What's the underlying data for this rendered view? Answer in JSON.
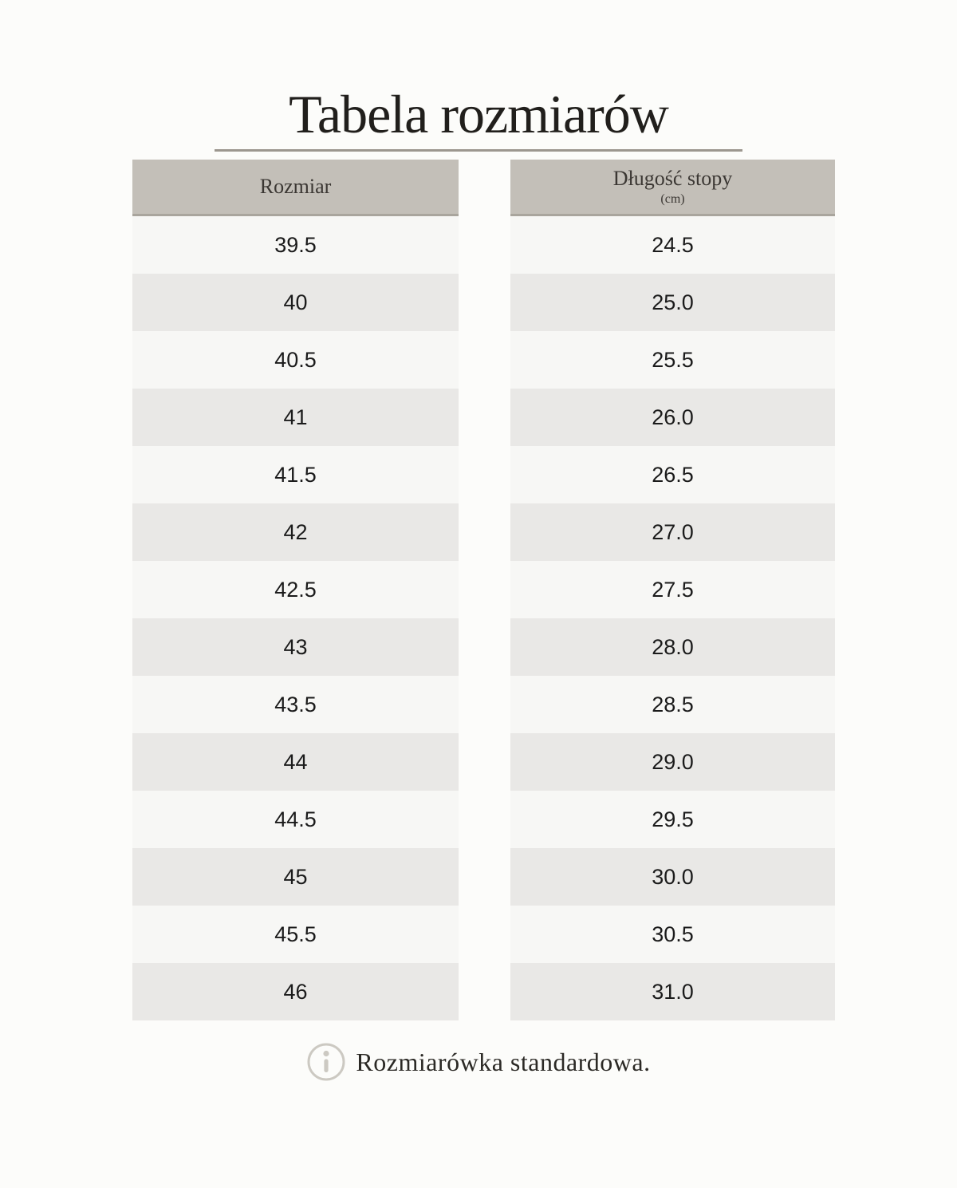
{
  "page": {
    "title": "Tabela rozmiarów",
    "background": "#FCFCFA"
  },
  "table": {
    "headers": {
      "size": "Rozmiar",
      "foot_length": "Długość stopy",
      "foot_length_unit": "(cm)"
    },
    "rows": [
      {
        "size": "39.5",
        "foot_length_cm": "24.5"
      },
      {
        "size": "40",
        "foot_length_cm": "25.0"
      },
      {
        "size": "40.5",
        "foot_length_cm": "25.5"
      },
      {
        "size": "41",
        "foot_length_cm": "26.0"
      },
      {
        "size": "41.5",
        "foot_length_cm": "26.5"
      },
      {
        "size": "42",
        "foot_length_cm": "27.0"
      },
      {
        "size": "42.5",
        "foot_length_cm": "27.5"
      },
      {
        "size": "43",
        "foot_length_cm": "28.0"
      },
      {
        "size": "43.5",
        "foot_length_cm": "28.5"
      },
      {
        "size": "44",
        "foot_length_cm": "29.0"
      },
      {
        "size": "44.5",
        "foot_length_cm": "29.5"
      },
      {
        "size": "45",
        "foot_length_cm": "30.0"
      },
      {
        "size": "45.5",
        "foot_length_cm": "30.5"
      },
      {
        "size": "46",
        "foot_length_cm": "31.0"
      }
    ],
    "colors": {
      "header_bg": "#C3BFB8",
      "header_border": "#A9A59D",
      "row_light": "#F7F7F5",
      "row_dark": "#E9E8E6",
      "title_underline": "#9C978F"
    }
  },
  "footer": {
    "note": "Rozmiarówka standardowa.",
    "icon": "info-icon",
    "icon_color": "#CCC9C2"
  }
}
